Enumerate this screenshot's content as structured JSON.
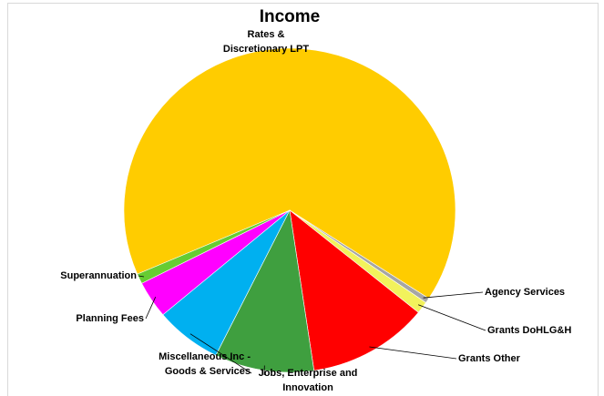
{
  "chart_data": {
    "type": "pie",
    "title": "Income",
    "categories": [
      "Rates & Discretionary LPT",
      "Agency Services",
      "Grants DoHLG&H",
      "Grants Other",
      "Jobs, Enterprise and Innovation",
      "Miscellaneous Inc - Goods & Services",
      "Planning Fees",
      "Superannuation"
    ],
    "values": [
      65.6,
      0.5,
      1.2,
      11.8,
      9.7,
      6.5,
      3.7,
      1.0
    ],
    "colors": [
      "#ffcc00",
      "#a6a6a6",
      "#f2f25c",
      "#ff0000",
      "#3f9f3f",
      "#00b0f0",
      "#ff00ff",
      "#66cc33"
    ]
  }
}
